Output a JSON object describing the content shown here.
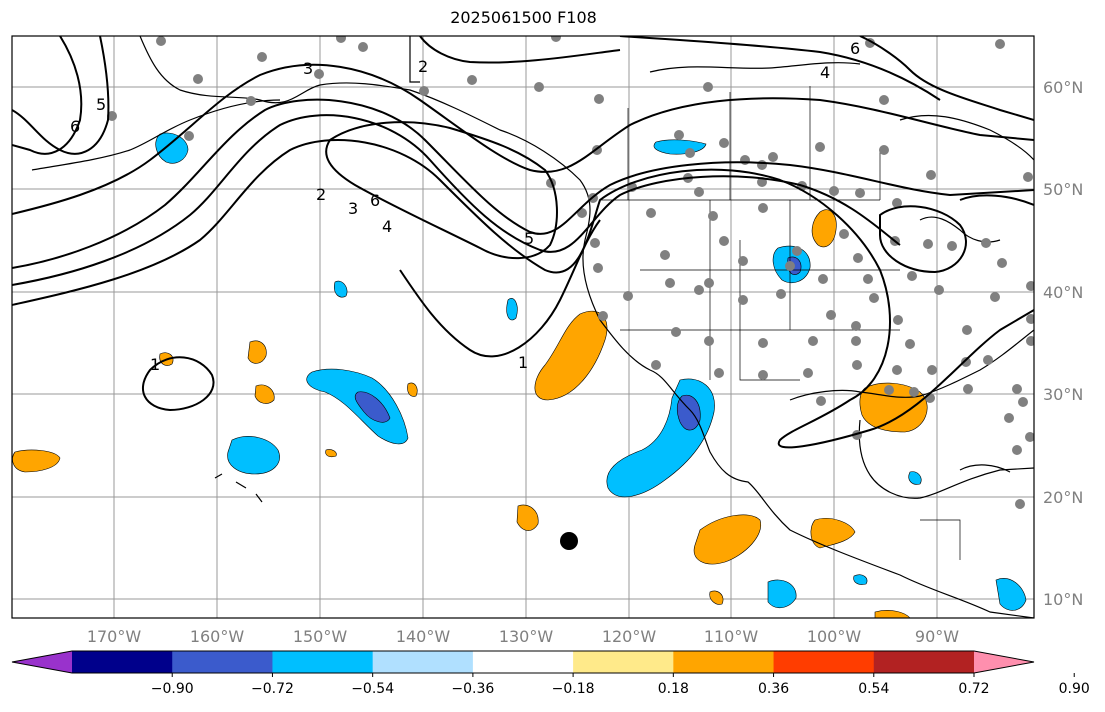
{
  "title": "2025061500 F108",
  "map": {
    "lon_ticks": [
      "170°W",
      "160°W",
      "150°W",
      "140°W",
      "130°W",
      "120°W",
      "110°W",
      "100°W",
      "90°W"
    ],
    "lat_ticks": [
      "60°N",
      "50°N",
      "40°N",
      "30°N",
      "20°N",
      "10°N"
    ],
    "contour_labels": [
      "2",
      "3",
      "4",
      "5",
      "6",
      "1"
    ],
    "colors": {
      "land_outline": "#000000",
      "grid": "#999999",
      "station_dot": "#808080",
      "positive": "#ffa500",
      "negative": "#00bfff",
      "strong_negative": "#3b5bcc"
    }
  },
  "colorbar": {
    "colors": [
      "#9932cc",
      "#00008b",
      "#3b5bcc",
      "#00bfff",
      "#b0e0ff",
      "#ffffff",
      "#ffea8a",
      "#ffa500",
      "#ff3d00",
      "#b22222",
      "#ff8fae"
    ],
    "labels": [
      "−0.90",
      "−0.72",
      "−0.54",
      "−0.36",
      "−0.18",
      "0.18",
      "0.36",
      "0.54",
      "0.72",
      "0.90"
    ]
  }
}
